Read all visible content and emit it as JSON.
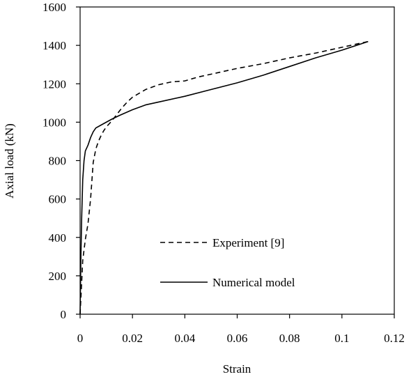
{
  "chart_data": {
    "type": "line",
    "title": "",
    "xlabel": "Strain",
    "ylabel": "Axial load (kN)",
    "xlim": [
      0,
      0.12
    ],
    "ylim": [
      0,
      1600
    ],
    "x_ticks": [
      0,
      0.02,
      0.04,
      0.06,
      0.08,
      0.1,
      0.12
    ],
    "x_tick_labels": [
      "0",
      "0.02",
      "0.04",
      "0.06",
      "0.08",
      "0.1",
      "0.12"
    ],
    "y_ticks": [
      0,
      200,
      400,
      600,
      800,
      1000,
      1200,
      1400,
      1600
    ],
    "y_tick_labels": [
      "0",
      "200",
      "400",
      "600",
      "800",
      "1000",
      "1200",
      "1400",
      "1600"
    ],
    "grid": false,
    "legend_position": "bottom-right",
    "series": [
      {
        "name": "Experiment [9]",
        "style": "dashed",
        "color": "#000000",
        "points": [
          [
            0,
            0
          ],
          [
            0.0005,
            140
          ],
          [
            0.001,
            280
          ],
          [
            0.002,
            390
          ],
          [
            0.003,
            470
          ],
          [
            0.004,
            600
          ],
          [
            0.005,
            790
          ],
          [
            0.006,
            860
          ],
          [
            0.007,
            900
          ],
          [
            0.008,
            930
          ],
          [
            0.009,
            955
          ],
          [
            0.01,
            975
          ],
          [
            0.012,
            1005
          ],
          [
            0.014,
            1040
          ],
          [
            0.016,
            1075
          ],
          [
            0.018,
            1105
          ],
          [
            0.02,
            1130
          ],
          [
            0.025,
            1170
          ],
          [
            0.03,
            1195
          ],
          [
            0.035,
            1210
          ],
          [
            0.04,
            1215
          ],
          [
            0.045,
            1235
          ],
          [
            0.05,
            1250
          ],
          [
            0.055,
            1265
          ],
          [
            0.06,
            1280
          ],
          [
            0.07,
            1305
          ],
          [
            0.08,
            1335
          ],
          [
            0.09,
            1360
          ],
          [
            0.1,
            1390
          ],
          [
            0.11,
            1420
          ]
        ]
      },
      {
        "name": "Numerical model",
        "style": "solid",
        "color": "#000000",
        "points": [
          [
            0,
            0
          ],
          [
            0.0003,
            300
          ],
          [
            0.0006,
            500
          ],
          [
            0.001,
            700
          ],
          [
            0.0015,
            800
          ],
          [
            0.002,
            850
          ],
          [
            0.003,
            880
          ],
          [
            0.004,
            920
          ],
          [
            0.005,
            950
          ],
          [
            0.006,
            970
          ],
          [
            0.008,
            985
          ],
          [
            0.01,
            1000
          ],
          [
            0.012,
            1015
          ],
          [
            0.015,
            1035
          ],
          [
            0.02,
            1065
          ],
          [
            0.025,
            1090
          ],
          [
            0.03,
            1105
          ],
          [
            0.04,
            1135
          ],
          [
            0.05,
            1170
          ],
          [
            0.06,
            1205
          ],
          [
            0.07,
            1245
          ],
          [
            0.08,
            1290
          ],
          [
            0.09,
            1335
          ],
          [
            0.1,
            1375
          ],
          [
            0.11,
            1420
          ]
        ]
      }
    ]
  }
}
